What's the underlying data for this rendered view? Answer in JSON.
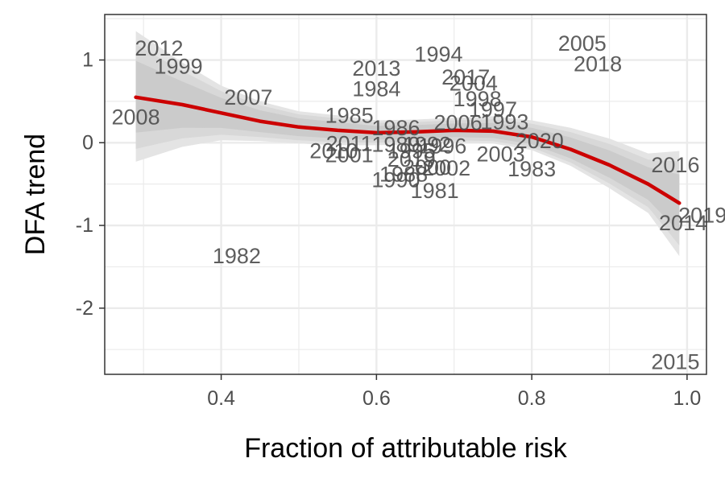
{
  "chart_data": {
    "type": "scatter",
    "title": "",
    "xlabel": "Fraction of attributable risk",
    "ylabel": "DFA trend",
    "xlim": [
      0.25,
      1.025
    ],
    "ylim": [
      -2.8,
      1.55
    ],
    "x_ticks": [
      0.4,
      0.6,
      0.8,
      1.0
    ],
    "x_tick_labels": [
      "0.4",
      "0.6",
      "0.8",
      "1.0"
    ],
    "y_ticks": [
      -2,
      -1,
      0,
      1
    ],
    "y_tick_labels": [
      "-2",
      "-1",
      "0",
      "1"
    ],
    "grid": true,
    "legend": "none",
    "points": [
      {
        "label": "2012",
        "x": 0.32,
        "y": 1.14
      },
      {
        "label": "1999",
        "x": 0.345,
        "y": 0.92
      },
      {
        "label": "2008",
        "x": 0.29,
        "y": 0.31
      },
      {
        "label": "2007",
        "x": 0.435,
        "y": 0.55
      },
      {
        "label": "1982",
        "x": 0.42,
        "y": -1.37
      },
      {
        "label": "1985",
        "x": 0.565,
        "y": 0.33
      },
      {
        "label": "2010",
        "x": 0.545,
        "y": -0.1
      },
      {
        "label": "2011",
        "x": 0.565,
        "y": -0.01
      },
      {
        "label": "2001",
        "x": 0.565,
        "y": -0.15
      },
      {
        "label": "1986",
        "x": 0.625,
        "y": 0.18
      },
      {
        "label": "1989",
        "x": 0.625,
        "y": -0.02
      },
      {
        "label": "1992",
        "x": 0.665,
        "y": -0.02
      },
      {
        "label": "1995",
        "x": 0.645,
        "y": -0.1
      },
      {
        "label": "2019",
        "x": 0.645,
        "y": -0.2
      },
      {
        "label": "1990",
        "x": 0.625,
        "y": -0.45
      },
      {
        "label": "1988",
        "x": 0.635,
        "y": -0.38
      },
      {
        "label": "2000",
        "x": 0.665,
        "y": -0.3
      },
      {
        "label": "2002",
        "x": 0.69,
        "y": -0.31
      },
      {
        "label": "1996",
        "x": 0.685,
        "y": -0.04
      },
      {
        "label": "1981",
        "x": 0.675,
        "y": -0.58
      },
      {
        "label": "2013",
        "x": 0.6,
        "y": 0.9
      },
      {
        "label": "1994",
        "x": 0.68,
        "y": 1.07
      },
      {
        "label": "1984",
        "x": 0.6,
        "y": 0.65
      },
      {
        "label": "2017",
        "x": 0.715,
        "y": 0.79
      },
      {
        "label": "2004",
        "x": 0.725,
        "y": 0.72
      },
      {
        "label": "1998",
        "x": 0.73,
        "y": 0.53
      },
      {
        "label": "1997",
        "x": 0.75,
        "y": 0.4
      },
      {
        "label": "2006",
        "x": 0.705,
        "y": 0.24
      },
      {
        "label": "1993",
        "x": 0.765,
        "y": 0.25
      },
      {
        "label": "2003",
        "x": 0.76,
        "y": -0.14
      },
      {
        "label": "1983",
        "x": 0.8,
        "y": -0.32
      },
      {
        "label": "2020",
        "x": 0.81,
        "y": 0.02
      },
      {
        "label": "2005",
        "x": 0.865,
        "y": 1.2
      },
      {
        "label": "2018",
        "x": 0.885,
        "y": 0.95
      },
      {
        "label": "2016",
        "x": 0.985,
        "y": -0.27
      },
      {
        "label": "2019",
        "x": 1.02,
        "y": -0.88
      },
      {
        "label": "2014",
        "x": 0.995,
        "y": -0.97
      },
      {
        "label": "2015",
        "x": 0.985,
        "y": -2.65
      }
    ],
    "smooth": {
      "color": "#cc0000",
      "x": [
        0.29,
        0.35,
        0.4,
        0.45,
        0.5,
        0.55,
        0.6,
        0.65,
        0.7,
        0.75,
        0.8,
        0.85,
        0.9,
        0.95,
        0.99
      ],
      "y": [
        0.55,
        0.46,
        0.36,
        0.26,
        0.19,
        0.15,
        0.12,
        0.13,
        0.15,
        0.14,
        0.07,
        -0.08,
        -0.27,
        -0.5,
        -0.73
      ],
      "lower": [
        -0.23,
        -0.05,
        0.03,
        0.02,
        -0.01,
        -0.03,
        -0.03,
        -0.02,
        0.0,
        -0.01,
        -0.09,
        -0.28,
        -0.55,
        -0.85,
        -1.37
      ],
      "upper": [
        1.35,
        0.97,
        0.69,
        0.5,
        0.38,
        0.33,
        0.27,
        0.28,
        0.3,
        0.32,
        0.27,
        0.18,
        0.05,
        -0.13,
        -0.1
      ]
    }
  }
}
